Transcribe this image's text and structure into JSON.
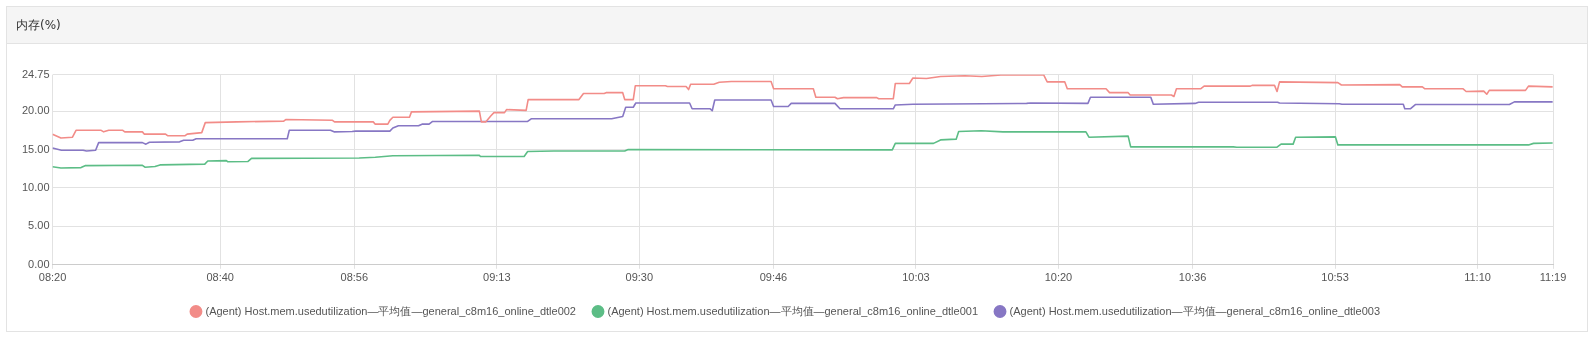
{
  "chart_data": {
    "type": "line",
    "title": "内存(%)",
    "xlim": [
      8.3333,
      11.3167
    ],
    "xticks": [
      {
        "value": 8.3333,
        "label": "08:20"
      },
      {
        "value": 8.6667,
        "label": "08:40"
      },
      {
        "value": 8.9333,
        "label": "08:56"
      },
      {
        "value": 9.2167,
        "label": "09:13"
      },
      {
        "value": 9.5,
        "label": "09:30"
      },
      {
        "value": 9.7667,
        "label": "09:46"
      },
      {
        "value": 10.05,
        "label": "10:03"
      },
      {
        "value": 10.3333,
        "label": "10:20"
      },
      {
        "value": 10.6,
        "label": "10:36"
      },
      {
        "value": 10.8833,
        "label": "10:53"
      },
      {
        "value": 11.1667,
        "label": "11:10"
      },
      {
        "value": 11.3167,
        "label": "11:19"
      }
    ],
    "ylim": [
      0,
      24.75
    ],
    "yticks": [
      {
        "value": 0,
        "label": "0.00"
      },
      {
        "value": 5,
        "label": "5.00"
      },
      {
        "value": 10,
        "label": "10.00"
      },
      {
        "value": 15,
        "label": "15.00"
      },
      {
        "value": 20,
        "label": "20.00"
      },
      {
        "value": 24.75,
        "label": "24.75"
      }
    ],
    "grid": true,
    "legend": "bottom",
    "marker": "none",
    "line_style": "solid",
    "series": [
      {
        "name": "(Agent) Host.mem.usedutilization—平均值—general_c8m16_online_dtle002",
        "color": "#f28c88",
        "x": [
          8.3333,
          8.35,
          8.373,
          8.38,
          8.43,
          8.435,
          8.445,
          8.473,
          8.477,
          8.512,
          8.516,
          8.558,
          8.562,
          8.597,
          8.601,
          8.63,
          8.637,
          8.7,
          8.793,
          8.797,
          8.89,
          8.894,
          8.971,
          8.975,
          9.0,
          9.004,
          9.01,
          9.043,
          9.047,
          9.182,
          9.186,
          9.195,
          9.205,
          9.211,
          9.232,
          9.236,
          9.275,
          9.279,
          9.38,
          9.389,
          9.43,
          9.434,
          9.467,
          9.471,
          9.488,
          9.492,
          9.552,
          9.556,
          9.593,
          9.598,
          9.602,
          9.648,
          9.659,
          9.683,
          9.762,
          9.767,
          9.846,
          9.851,
          9.889,
          9.894,
          9.906,
          9.972,
          9.976,
          10.005,
          10.009,
          10.037,
          10.044,
          10.071,
          10.099,
          10.147,
          10.181,
          10.219,
          10.304,
          10.311,
          10.346,
          10.351,
          10.428,
          10.435,
          10.472,
          10.476,
          10.558,
          10.563,
          10.568,
          10.616,
          10.623,
          10.715,
          10.719,
          10.763,
          10.768,
          10.773,
          10.889,
          10.896,
          11.012,
          11.017,
          11.057,
          11.062,
          11.138,
          11.144,
          11.179,
          11.185,
          11.19,
          11.262,
          11.268,
          11.316
        ],
        "values": [
          17.0,
          16.5,
          16.6,
          17.5,
          17.5,
          17.3,
          17.5,
          17.5,
          17.3,
          17.3,
          17.0,
          17.0,
          16.8,
          16.8,
          17.0,
          17.2,
          18.5,
          18.6,
          18.7,
          18.9,
          18.8,
          18.6,
          18.6,
          18.3,
          18.3,
          18.8,
          19.2,
          19.2,
          19.9,
          20.0,
          18.6,
          18.6,
          19.4,
          19.8,
          19.8,
          20.2,
          20.1,
          21.5,
          21.5,
          22.3,
          22.3,
          22.4,
          22.4,
          21.5,
          21.5,
          23.3,
          23.3,
          23.2,
          23.2,
          22.8,
          23.5,
          23.5,
          23.75,
          23.85,
          23.85,
          22.9,
          22.9,
          21.8,
          21.8,
          21.6,
          21.75,
          21.75,
          21.6,
          21.6,
          23.6,
          23.6,
          24.3,
          24.25,
          24.5,
          24.6,
          24.5,
          24.7,
          24.7,
          23.8,
          23.8,
          22.9,
          22.9,
          22.4,
          22.4,
          22.1,
          22.1,
          21.9,
          22.9,
          22.9,
          23.25,
          23.25,
          23.35,
          23.35,
          22.55,
          23.8,
          23.7,
          23.4,
          23.45,
          23.15,
          23.15,
          22.9,
          22.9,
          22.55,
          22.6,
          22.2,
          22.7,
          22.7,
          23.25,
          23.15
        ]
      },
      {
        "name": "(Agent) Host.mem.usedutilization—平均值—general_c8m16_online_dtle001",
        "color": "#5cbd86",
        "x": [
          8.3333,
          8.35,
          8.39,
          8.398,
          8.512,
          8.517,
          8.537,
          8.547,
          8.636,
          8.642,
          8.679,
          8.682,
          8.722,
          8.729,
          8.943,
          8.975,
          9.01,
          9.182,
          9.184,
          9.271,
          9.278,
          9.33,
          9.471,
          9.478,
          10.003,
          10.009,
          10.085,
          10.099,
          10.13,
          10.135,
          10.18,
          10.223,
          10.388,
          10.394,
          10.472,
          10.477,
          10.681,
          10.688,
          10.768,
          10.776,
          10.8,
          10.805,
          10.884,
          10.889,
          11.268,
          11.278,
          11.316
        ],
        "values": [
          12.75,
          12.6,
          12.65,
          12.9,
          12.95,
          12.7,
          12.8,
          13.0,
          13.1,
          13.5,
          13.55,
          13.4,
          13.45,
          13.85,
          13.9,
          14.0,
          14.2,
          14.25,
          14.1,
          14.1,
          14.75,
          14.8,
          14.8,
          15.0,
          14.95,
          15.8,
          15.8,
          16.25,
          16.35,
          17.35,
          17.45,
          17.3,
          17.3,
          16.6,
          16.75,
          15.35,
          15.35,
          15.3,
          15.3,
          15.7,
          15.7,
          16.6,
          16.65,
          15.6,
          15.6,
          15.8,
          15.85
        ]
      },
      {
        "name": "(Agent) Host.mem.usedutilization—平均值—general_c8m16_online_dtle003",
        "color": "#8777c4",
        "x": [
          8.3333,
          8.351,
          8.394,
          8.401,
          8.419,
          8.425,
          8.512,
          8.519,
          8.526,
          8.586,
          8.594,
          8.612,
          8.619,
          8.8,
          8.804,
          8.886,
          8.893,
          8.929,
          8.936,
          9.004,
          9.01,
          9.021,
          9.061,
          9.068,
          9.082,
          9.089,
          9.278,
          9.285,
          9.445,
          9.467,
          9.473,
          9.488,
          9.493,
          9.6,
          9.605,
          9.641,
          9.645,
          9.65,
          9.762,
          9.767,
          9.796,
          9.802,
          9.889,
          9.899,
          10.005,
          10.009,
          10.044,
          10.27,
          10.278,
          10.392,
          10.397,
          10.517,
          10.522,
          10.605,
          10.612,
          10.769,
          10.773,
          10.892,
          10.897,
          11.019,
          11.022,
          11.033,
          11.043,
          11.23,
          11.24,
          11.316
        ],
        "values": [
          15.2,
          14.9,
          14.9,
          14.8,
          14.9,
          15.9,
          15.9,
          15.7,
          15.95,
          16.0,
          16.2,
          16.2,
          16.4,
          16.4,
          17.5,
          17.5,
          17.3,
          17.35,
          17.4,
          17.4,
          17.8,
          18.1,
          18.1,
          18.3,
          18.3,
          18.65,
          18.65,
          19.0,
          19.0,
          19.3,
          20.5,
          20.5,
          21.05,
          21.05,
          20.3,
          20.3,
          20.05,
          21.45,
          21.45,
          20.6,
          20.6,
          21.0,
          21.0,
          20.3,
          20.3,
          20.8,
          20.9,
          21.0,
          21.05,
          21.0,
          21.8,
          21.8,
          20.9,
          21.0,
          21.15,
          21.15,
          21.05,
          20.95,
          20.9,
          20.9,
          20.3,
          20.3,
          20.85,
          20.85,
          21.2,
          21.2
        ]
      }
    ]
  }
}
